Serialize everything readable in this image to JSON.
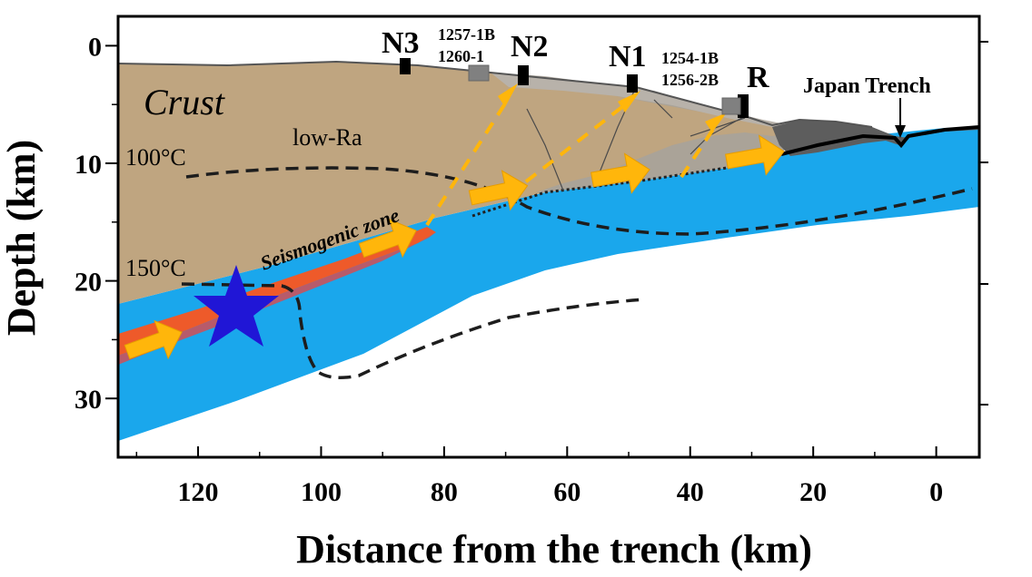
{
  "axes": {
    "xlabel": "Distance from the trench (km)",
    "ylabel": "Depth (km)",
    "x_ticks": [
      "120",
      "100",
      "80",
      "60",
      "40",
      "20",
      "0"
    ],
    "y_ticks": [
      "0",
      "10",
      "20",
      "30"
    ],
    "xlim": [
      133,
      -7
    ],
    "ylim": [
      35,
      -2.5
    ]
  },
  "labels": {
    "crust": "Crust",
    "low_ra": "low-Ra",
    "isotherm_100": "100°C",
    "isotherm_150": "150°C",
    "seismogenic": "Seismogenic zone",
    "japan_trench": "Japan Trench"
  },
  "sites": [
    {
      "name": "N3",
      "distance_km": 87,
      "depth_km": 2.0
    },
    {
      "name": "N2",
      "distance_km": 65.5,
      "depth_km": 2.8
    },
    {
      "name": "N1",
      "distance_km": 47.5,
      "depth_km": 3.4
    },
    {
      "name": "R",
      "distance_km": 29.5,
      "depth_km": 5.2
    }
  ],
  "holes": [
    {
      "label": "1257-1B"
    },
    {
      "label": "1260-1"
    },
    {
      "label": "1254-1B"
    },
    {
      "label": "1256-2B"
    }
  ],
  "colors": {
    "crust": "#bfa580",
    "slab": "#1aa7ec",
    "seismogenic": "#ee5a2a",
    "seismogenic_overlay": "#b75b6b",
    "arrow": "#ffb60b",
    "epicenter": "#2016d6",
    "wedge": "#5d5d5d",
    "sediment": "#a6a29c"
  },
  "icons": {
    "epicenter": "star-icon",
    "fluid_flow": "arrow-icon"
  }
}
